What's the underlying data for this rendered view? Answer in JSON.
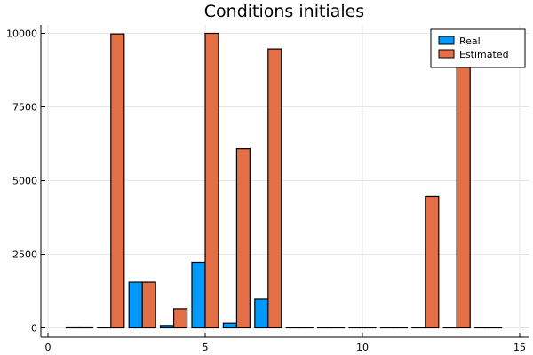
{
  "chart_data": {
    "type": "bar",
    "title": "Conditions initiales",
    "xlabel": "",
    "ylabel": "",
    "xlim": [
      0,
      15
    ],
    "ylim": [
      0,
      10000
    ],
    "xticks": [
      "0",
      "5",
      "10",
      "15"
    ],
    "yticks": [
      "0",
      "2500",
      "5000",
      "7500",
      "10000"
    ],
    "grid": true,
    "legend_position": "top-right",
    "x": [
      1,
      2,
      3,
      4,
      5,
      6,
      7,
      8,
      9,
      10,
      11,
      12,
      13,
      14
    ],
    "series": [
      {
        "name": "Real",
        "color": "#009AFA",
        "values": [
          30,
          0,
          1550,
          80,
          2230,
          160,
          980,
          0,
          0,
          0,
          0,
          0,
          0,
          0
        ]
      },
      {
        "name": "Estimated",
        "color": "#E26F46",
        "values": [
          30,
          9980,
          1550,
          650,
          10000,
          6080,
          9470,
          0,
          0,
          0,
          0,
          4460,
          9950,
          0
        ]
      }
    ]
  }
}
